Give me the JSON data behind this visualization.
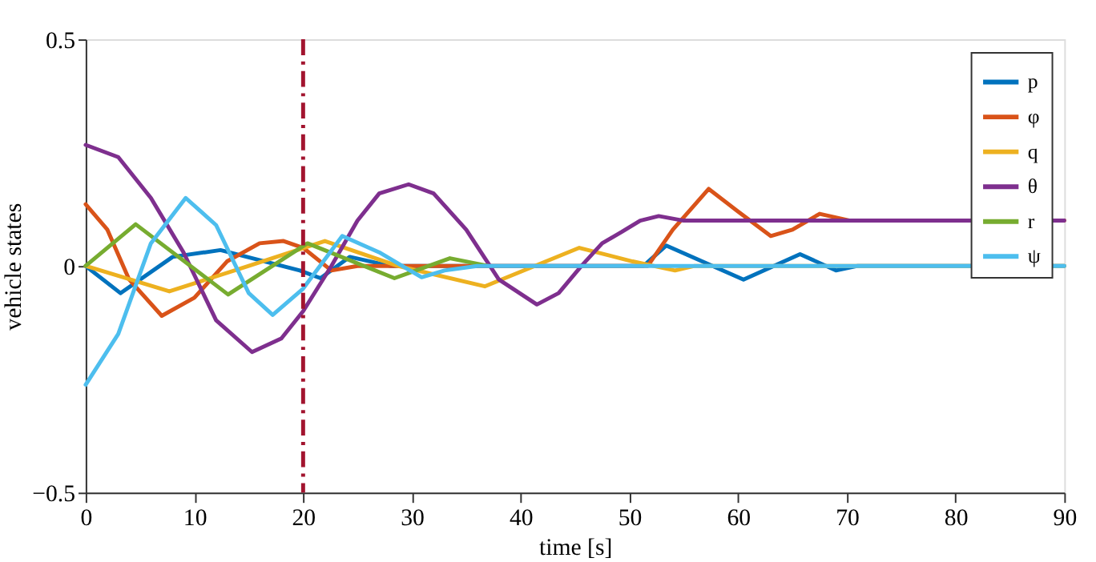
{
  "chart_data": {
    "type": "line",
    "xlabel": "time [s]",
    "ylabel": "vehicle states",
    "xlim": [
      0,
      90
    ],
    "ylim": [
      -0.5,
      0.5
    ],
    "xticks": [
      0,
      10,
      20,
      30,
      40,
      50,
      60,
      70,
      80,
      90
    ],
    "yticks": [
      -0.5,
      0,
      0.5
    ],
    "grid": false,
    "legend": "top right",
    "line_style": "solid",
    "marker": "none",
    "ref_lines": [
      {
        "axis": "x",
        "value": 20,
        "color": "#a2142f",
        "line_style": "dashdot"
      }
    ],
    "series": [
      {
        "name": "p",
        "color": "#0072bd",
        "x": [
          0,
          3.2,
          8,
          12.4,
          19.7,
          21.6,
          24.3,
          28,
          51.3,
          53.4,
          60.5,
          65.7,
          69,
          71,
          90
        ],
        "values": [
          0,
          -0.06,
          0.02,
          0.035,
          -0.01,
          -0.027,
          0.02,
          0,
          0,
          0.045,
          -0.03,
          0.026,
          -0.01,
          0,
          0
        ]
      },
      {
        "name": "φ",
        "color": "#d95319",
        "x": [
          0,
          2,
          4,
          7,
          10,
          13,
          16,
          18.2,
          20,
          22.6,
          25,
          51.7,
          54,
          57.3,
          60,
          63,
          65,
          67.5,
          70.3,
          90
        ],
        "values": [
          0.136,
          0.08,
          -0.03,
          -0.11,
          -0.07,
          0.01,
          0.05,
          0.055,
          0.04,
          -0.01,
          0,
          0,
          0.08,
          0.17,
          0.12,
          0.066,
          0.08,
          0.115,
          0.1,
          0.1
        ]
      },
      {
        "name": "q",
        "color": "#edb120",
        "x": [
          0,
          7.7,
          15,
          22,
          28.7,
          36.7,
          45.4,
          50.3,
          54.2,
          56,
          90
        ],
        "values": [
          0,
          -0.056,
          0,
          0.055,
          0,
          -0.045,
          0.04,
          0.01,
          -0.01,
          0,
          0
        ]
      },
      {
        "name": "θ",
        "color": "#7e2f8e",
        "x": [
          0,
          3,
          6,
          9,
          12,
          15.3,
          18,
          20,
          22.6,
          25,
          27,
          29.7,
          32,
          35,
          38,
          41.5,
          43.5,
          45.6,
          47.5,
          49.3,
          51,
          52.7,
          55,
          90
        ],
        "values": [
          0.267,
          0.24,
          0.15,
          0.03,
          -0.12,
          -0.19,
          -0.16,
          -0.1,
          0,
          0.1,
          0.16,
          0.18,
          0.16,
          0.08,
          -0.03,
          -0.085,
          -0.06,
          0,
          0.05,
          0.075,
          0.1,
          0.11,
          0.1,
          0.1
        ]
      },
      {
        "name": "r",
        "color": "#77ac30",
        "x": [
          0,
          4.6,
          13.1,
          20.4,
          28.4,
          33.5,
          37
        ],
        "values": [
          0,
          0.092,
          -0.063,
          0.05,
          -0.027,
          0.017,
          0
        ]
      },
      {
        "name": "ψ",
        "color": "#4dbeee",
        "x": [
          0,
          3,
          6,
          9.2,
          12,
          15,
          17.2,
          20,
          23.6,
          27,
          30.9,
          33,
          36,
          90
        ],
        "values": [
          -0.262,
          -0.15,
          0.05,
          0.15,
          0.09,
          -0.06,
          -0.108,
          -0.05,
          0.066,
          0.03,
          -0.025,
          -0.01,
          0,
          0
        ]
      }
    ]
  }
}
